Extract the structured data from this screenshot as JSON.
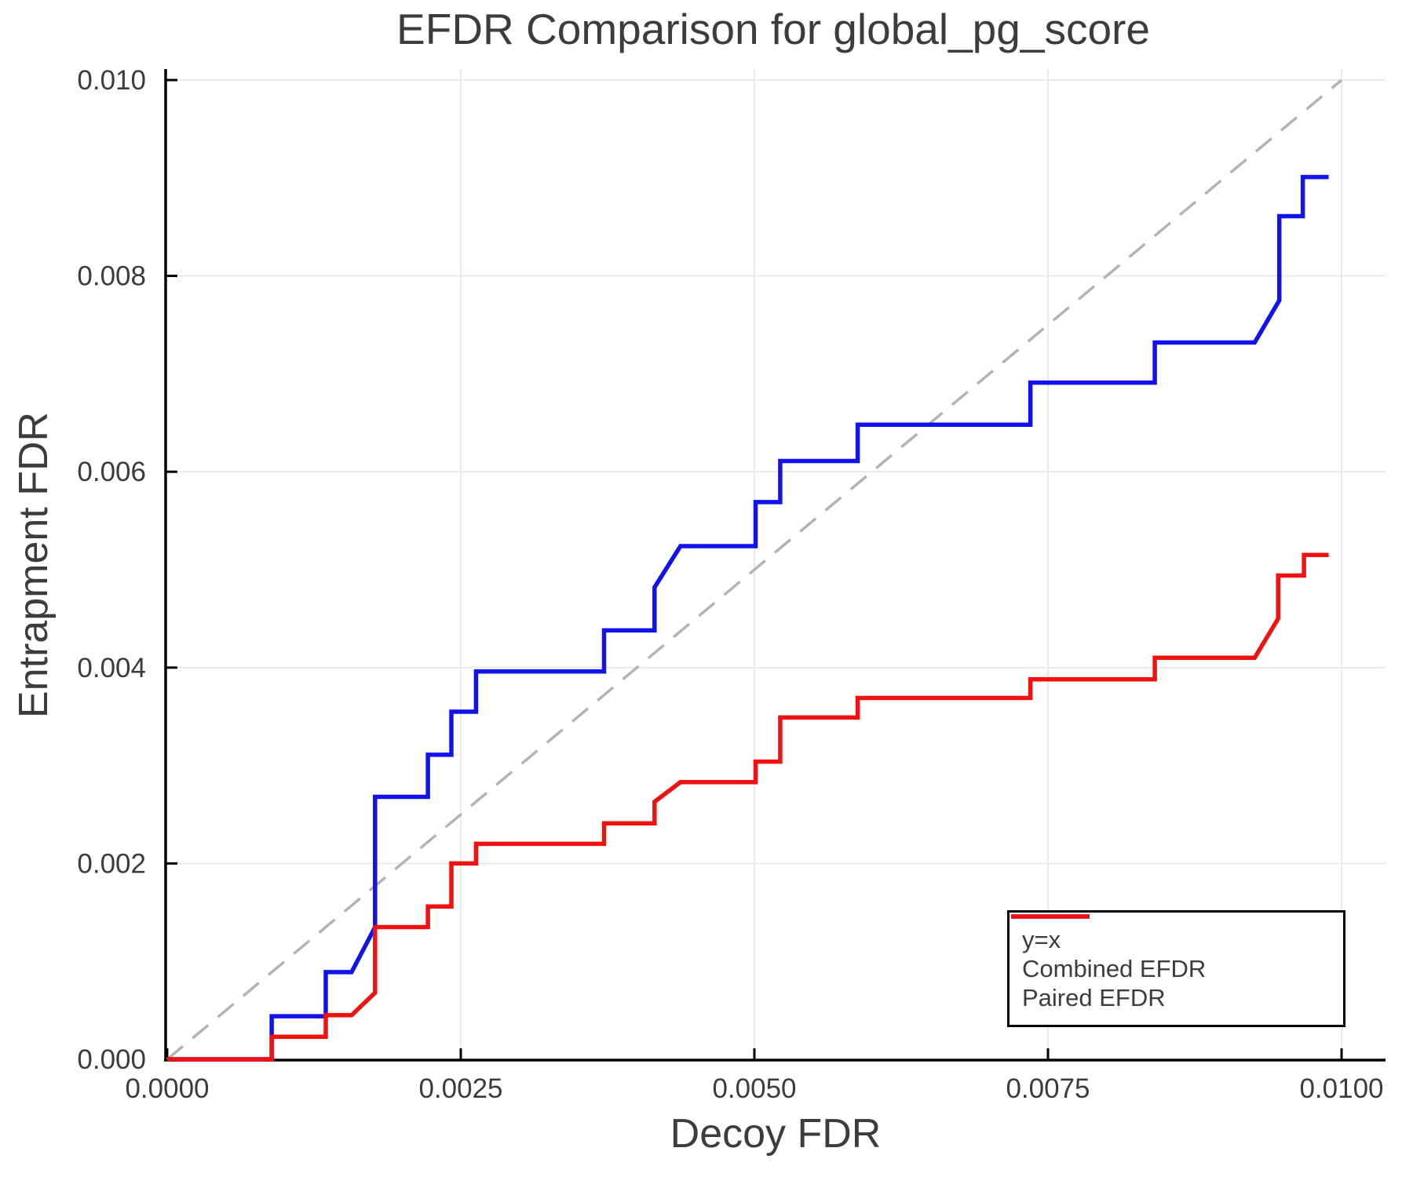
{
  "title": "EFDR Comparison for global_pg_score",
  "axes": {
    "x": {
      "label": "Decoy FDR",
      "tick_labels": [
        "0.0000",
        "0.0025",
        "0.0050",
        "0.0075",
        "0.0100"
      ],
      "tick_values": [
        0,
        0.0025,
        0.005,
        0.0075,
        0.01
      ]
    },
    "y": {
      "label": "Entrapment FDR",
      "tick_labels": [
        "0.000",
        "0.002",
        "0.004",
        "0.006",
        "0.008",
        "0.010"
      ],
      "tick_values": [
        0,
        0.002,
        0.004,
        0.006,
        0.008,
        0.01
      ]
    }
  },
  "legend": {
    "items": [
      {
        "label": "y=x",
        "color": "#b3b3b3",
        "dash": true
      },
      {
        "label": "Combined EFDR",
        "color": "#1212ef",
        "dash": false
      },
      {
        "label": "Paired EFDR",
        "color": "#f21111",
        "dash": false
      }
    ]
  },
  "colors": {
    "grid": "#e8e8e8",
    "spine": "#000000",
    "text": "#3c3c3c",
    "background": "#ffffff",
    "identity_line": "#b3b3b3",
    "combined": "#1212ef",
    "paired": "#f21111"
  },
  "chart_data": {
    "type": "line",
    "title": "EFDR Comparison for global_pg_score",
    "xlabel": "Decoy FDR",
    "ylabel": "Entrapment FDR",
    "xlim": [
      0,
      0.0104
    ],
    "ylim": [
      0,
      0.0101
    ],
    "grid": true,
    "legend_position": "lower right",
    "series": [
      {
        "name": "y=x",
        "style": "dashed",
        "color": "#b3b3b3",
        "points": [
          [
            0,
            0
          ],
          [
            0.01,
            0.01
          ]
        ]
      },
      {
        "name": "Combined EFDR",
        "style": "solid",
        "color": "#1212ef",
        "points": [
          [
            0.0,
            0.0
          ],
          [
            0.00089,
            0.0
          ],
          [
            0.00089,
            0.00044
          ],
          [
            0.00135,
            0.00044
          ],
          [
            0.00135,
            0.00089
          ],
          [
            0.00157,
            0.00089
          ],
          [
            0.00177,
            0.00135
          ],
          [
            0.00177,
            0.00268
          ],
          [
            0.00222,
            0.00268
          ],
          [
            0.00222,
            0.00311
          ],
          [
            0.00242,
            0.00311
          ],
          [
            0.00242,
            0.00355
          ],
          [
            0.00263,
            0.00355
          ],
          [
            0.00263,
            0.00396
          ],
          [
            0.00372,
            0.00396
          ],
          [
            0.00372,
            0.00438
          ],
          [
            0.00415,
            0.00438
          ],
          [
            0.00415,
            0.00482
          ],
          [
            0.00437,
            0.00524
          ],
          [
            0.00501,
            0.00524
          ],
          [
            0.00501,
            0.00569
          ],
          [
            0.00522,
            0.00569
          ],
          [
            0.00522,
            0.00611
          ],
          [
            0.00588,
            0.00611
          ],
          [
            0.00588,
            0.00648
          ],
          [
            0.00735,
            0.00648
          ],
          [
            0.00735,
            0.00691
          ],
          [
            0.00841,
            0.00691
          ],
          [
            0.00841,
            0.00732
          ],
          [
            0.00926,
            0.00732
          ],
          [
            0.00947,
            0.00775
          ],
          [
            0.00947,
            0.00861
          ],
          [
            0.00967,
            0.00861
          ],
          [
            0.00967,
            0.00901
          ],
          [
            0.00989,
            0.00901
          ]
        ]
      },
      {
        "name": "Paired EFDR",
        "style": "solid",
        "color": "#f21111",
        "points": [
          [
            0.0,
            0.0
          ],
          [
            0.00089,
            0.0
          ],
          [
            0.00089,
            0.00023
          ],
          [
            0.00135,
            0.00023
          ],
          [
            0.00135,
            0.00045
          ],
          [
            0.00157,
            0.00045
          ],
          [
            0.00177,
            0.00068
          ],
          [
            0.00177,
            0.00135
          ],
          [
            0.00222,
            0.00135
          ],
          [
            0.00222,
            0.00156
          ],
          [
            0.00242,
            0.00156
          ],
          [
            0.00242,
            0.002
          ],
          [
            0.00263,
            0.002
          ],
          [
            0.00263,
            0.0022
          ],
          [
            0.00372,
            0.0022
          ],
          [
            0.00372,
            0.00241
          ],
          [
            0.00415,
            0.00241
          ],
          [
            0.00415,
            0.00263
          ],
          [
            0.00437,
            0.00283
          ],
          [
            0.00501,
            0.00283
          ],
          [
            0.00501,
            0.00304
          ],
          [
            0.00522,
            0.00304
          ],
          [
            0.00522,
            0.00349
          ],
          [
            0.00588,
            0.00349
          ],
          [
            0.00588,
            0.00369
          ],
          [
            0.00735,
            0.00369
          ],
          [
            0.00735,
            0.00388
          ],
          [
            0.00841,
            0.00388
          ],
          [
            0.00841,
            0.0041
          ],
          [
            0.00926,
            0.0041
          ],
          [
            0.00946,
            0.0045
          ],
          [
            0.00946,
            0.00494
          ],
          [
            0.00968,
            0.00494
          ],
          [
            0.00968,
            0.00515
          ],
          [
            0.00989,
            0.00515
          ]
        ]
      }
    ]
  }
}
